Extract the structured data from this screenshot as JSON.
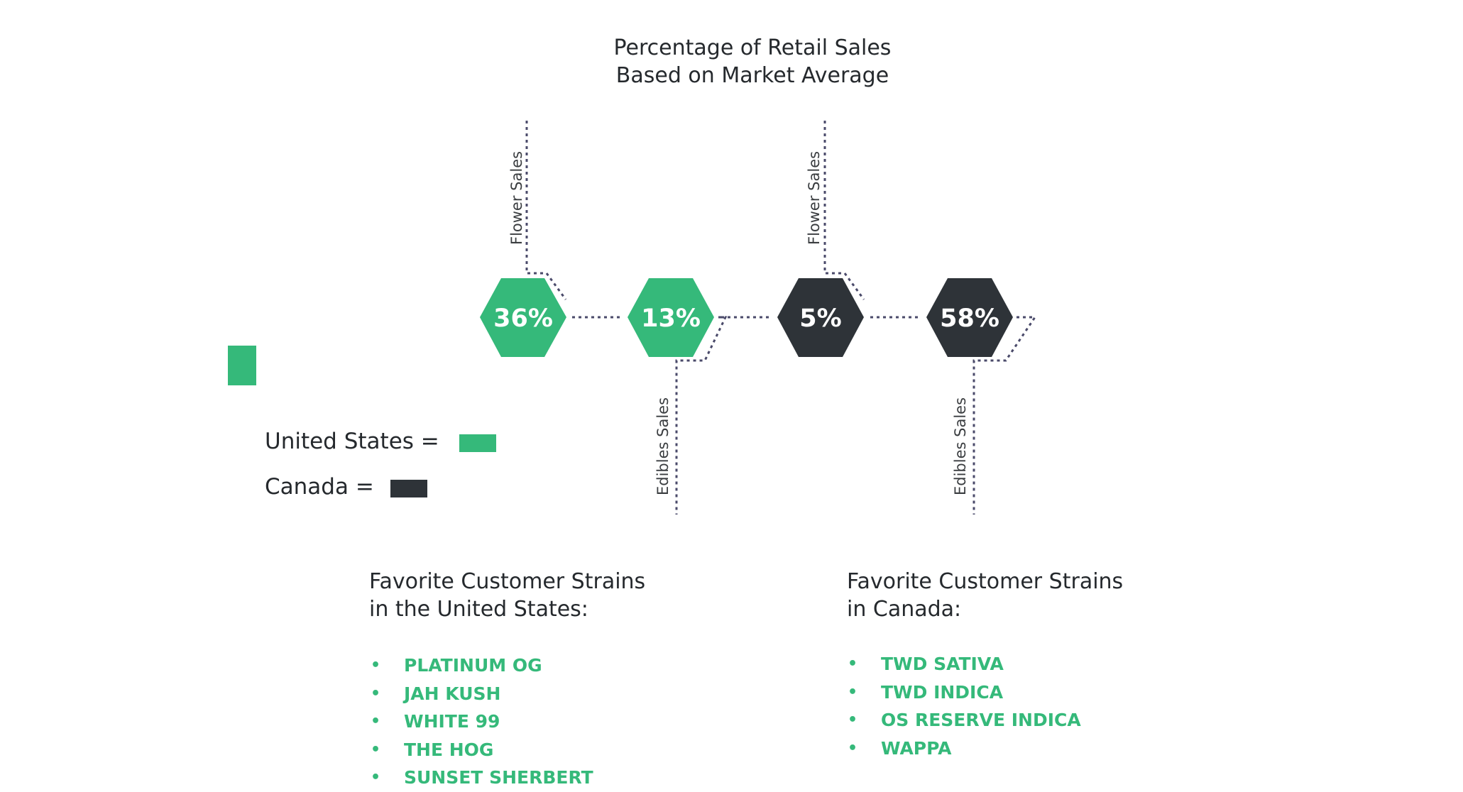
{
  "title": {
    "line1": "Percentage of Retail Sales",
    "line2": "Based on Market Average"
  },
  "colors": {
    "us": "#35b97a",
    "canada": "#2e3338",
    "connector": "#4a4a6a",
    "text": "#25292d"
  },
  "diagram": {
    "labels": {
      "flower": "Flower Sales",
      "edibles": "Edibles Sales"
    },
    "hexagons": [
      {
        "value": "36%",
        "market": "us"
      },
      {
        "value": "13%",
        "market": "us"
      },
      {
        "value": "5%",
        "market": "canada"
      },
      {
        "value": "58%",
        "market": "canada"
      }
    ]
  },
  "legend": {
    "us_label": "United States =",
    "canada_label": "Canada ="
  },
  "strains": {
    "us": {
      "heading_line1": "Favorite Customer Strains",
      "heading_line2": "in the United States:",
      "items": [
        "PLATINUM OG",
        "JAH KUSH",
        "WHITE 99",
        "THE HOG",
        "SUNSET SHERBERT"
      ]
    },
    "canada": {
      "heading_line1": "Favorite Customer Strains",
      "heading_line2": "in Canada:",
      "items": [
        "TWD SATIVA",
        "TWD INDICA",
        "OS RESERVE INDICA",
        "WAPPA"
      ]
    },
    "bullet": "•"
  }
}
